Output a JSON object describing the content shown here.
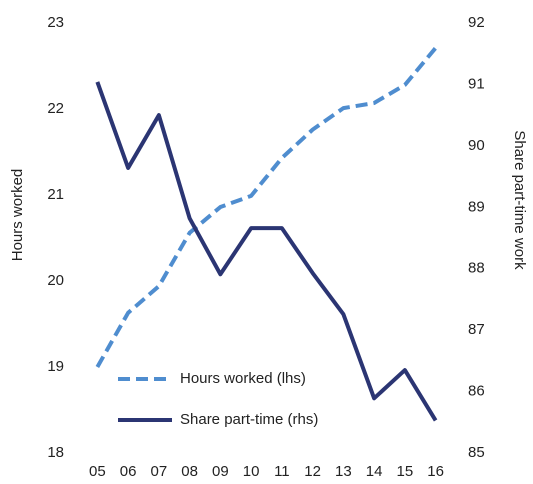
{
  "chart_data": {
    "type": "line",
    "categories": [
      "05",
      "06",
      "07",
      "08",
      "09",
      "10",
      "11",
      "12",
      "13",
      "14",
      "15",
      "16"
    ],
    "ylabel": "Hours worked",
    "y2label": "Share part-time work",
    "ylim": [
      18,
      23
    ],
    "yticks": [
      18,
      19,
      20,
      21,
      22,
      23
    ],
    "y2lim": [
      85,
      92
    ],
    "y2ticks": [
      85,
      86,
      87,
      88,
      89,
      90,
      91,
      92
    ],
    "legend": "lower left",
    "series": [
      {
        "name": "Hours worked (lhs)",
        "color": "#4f8dcf",
        "dashed": true,
        "values": [
          19.0,
          19.63,
          19.94,
          20.56,
          20.86,
          20.99,
          21.43,
          21.76,
          22.01,
          22.07,
          22.28,
          22.71
        ]
      },
      {
        "name": "Share part-time (rhs)",
        "color": "#2b3573",
        "dashed": false,
        "axis": "y2",
        "values": [
          91.04,
          89.64,
          90.5,
          88.82,
          87.91,
          88.66,
          88.66,
          87.93,
          87.26,
          85.89,
          86.35,
          85.53
        ]
      }
    ]
  }
}
